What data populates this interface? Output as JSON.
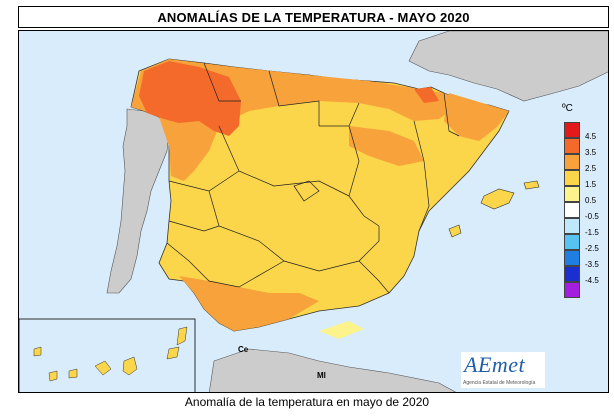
{
  "title": "ANOMALÍAS DE LA TEMPERATURA - MAYO 2020",
  "caption": "Anomalía de la temperatura en mayo de 2020",
  "legend": {
    "unit": "ºC",
    "ticks": [
      "4.5",
      "3.5",
      "2.5",
      "1.5",
      "0.5",
      "-0.5",
      "-1.5",
      "-2.5",
      "-3.5",
      "-4.5"
    ],
    "colors": [
      "#e31a1c",
      "#f36a2a",
      "#f7a23a",
      "#fbd54a",
      "#fdf38c",
      "#ffffff",
      "#bfe8fb",
      "#56c3f2",
      "#1f7fe0",
      "#1b2fd0",
      "#a21fe0"
    ]
  },
  "labels": {
    "ceuta": "Ce",
    "melilla": "Ml"
  },
  "logo": {
    "name": "AEmet",
    "subtitle": "Agencia Estatal de Meteorología"
  },
  "colors": {
    "sea": "#d9ecfb",
    "land_other": "#cccccc",
    "border": "#222222"
  }
}
